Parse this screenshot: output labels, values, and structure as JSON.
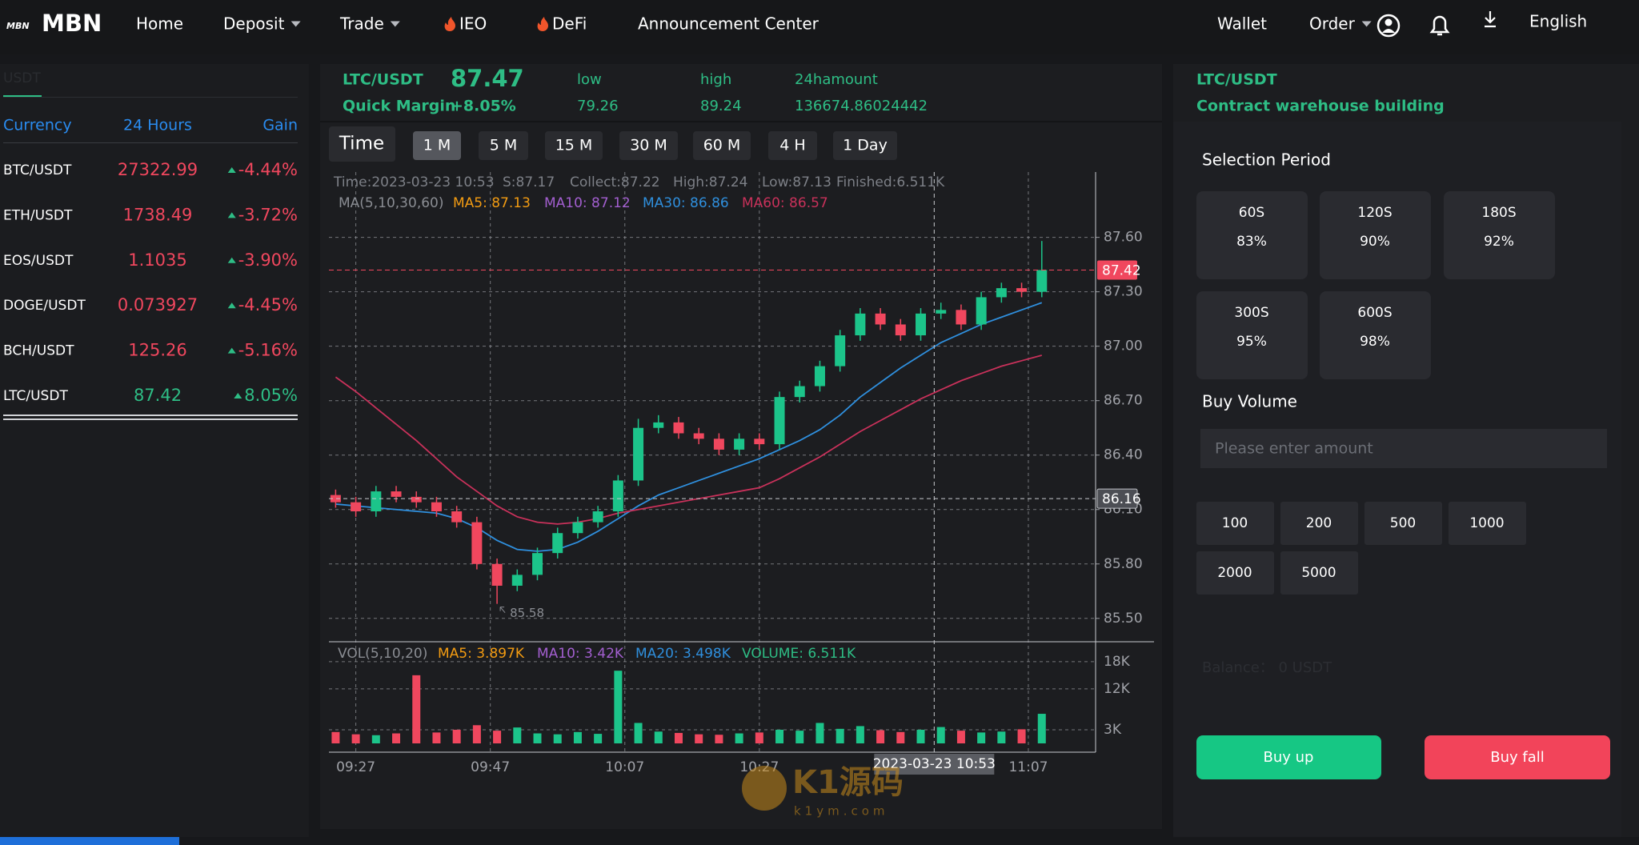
{
  "nav": {
    "logo_small": "MBN",
    "logo": "MBN",
    "items": [
      "Home",
      "Deposit",
      "Trade",
      "IEO",
      "DeFi",
      "Announcement Center"
    ],
    "right": [
      "Wallet",
      "Order",
      "English"
    ]
  },
  "market": {
    "tab": "USDT",
    "headers": [
      "Currency",
      "24 Hours",
      "Gain"
    ],
    "rows": [
      [
        "BTC/USDT",
        "27322.99",
        "-4.44%"
      ],
      [
        "ETH/USDT",
        "1738.49",
        "-3.72%"
      ],
      [
        "EOS/USDT",
        "1.1035",
        "-3.90%"
      ],
      [
        "DOGE/USDT",
        "0.073927",
        "-4.45%"
      ],
      [
        "BCH/USDT",
        "125.26",
        "-5.16%"
      ],
      [
        "LTC/USDT",
        "87.42",
        "8.05%"
      ]
    ]
  },
  "ticker": {
    "pair": "LTC/USDT",
    "price": "87.47",
    "margin_label": "Quick Margin",
    "margin": "+8.05%",
    "stats": [
      {
        "label": "low",
        "value": "79.26"
      },
      {
        "label": "high",
        "value": "89.24"
      },
      {
        "label": "24hamount",
        "value": "136674.86024442"
      }
    ]
  },
  "periods": {
    "label": "Time",
    "options": [
      "1 M",
      "5 M",
      "15 M",
      "30 M",
      "60 M",
      "4 H",
      "1 Day"
    ],
    "active": "1 M"
  },
  "chart_data": {
    "type": "candlestick",
    "info": [
      "Time:2023-03-23 10:53",
      "S:87.17",
      "Collect:87.22",
      "High:87.24",
      "Low:87.13",
      "Finished:6.511K"
    ],
    "ma_legend": [
      {
        "label": "MA(5,10,30,60)",
        "color": "#8a8d93"
      },
      {
        "label": "MA5: 87.13",
        "color": "#f39c12"
      },
      {
        "label": "MA10: 87.12",
        "color": "#a35fd0"
      }
    ],
    "vol_legend": [
      {
        "label": "VOL(5,10,20)",
        "color": "#8a8d93"
      },
      {
        "label": "MA5: 3.897K",
        "color": "#f39c12"
      },
      {
        "label": "MA10: 3.42K",
        "color": "#a35fd0"
      },
      {
        "label": "MA20: 3.498K",
        "color": "#2f8fdd"
      },
      {
        "label": "VOLUME: 6.511K",
        "color": "#2ebd85"
      }
    ],
    "up_color": "#1cc48a",
    "down_color": "#f0475e",
    "x": [
      "09:24",
      "09:27",
      "09:30",
      "09:33",
      "09:36",
      "09:39",
      "09:42",
      "09:45",
      "09:48",
      "09:51",
      "09:54",
      "09:57",
      "10:00",
      "10:03",
      "10:06",
      "10:09",
      "10:12",
      "10:15",
      "10:18",
      "10:21",
      "10:24",
      "10:27",
      "10:30",
      "10:33",
      "10:36",
      "10:39",
      "10:42",
      "10:45",
      "10:48",
      "10:51",
      "10:54",
      "10:57",
      "11:00",
      "11:03",
      "11:06",
      "11:09"
    ],
    "open": [
      86.18,
      86.14,
      86.09,
      86.2,
      86.17,
      86.14,
      86.09,
      86.03,
      85.8,
      85.68,
      85.74,
      85.86,
      85.97,
      86.03,
      86.09,
      86.26,
      86.55,
      86.58,
      86.52,
      86.49,
      86.43,
      86.49,
      86.46,
      86.72,
      86.78,
      86.89,
      87.06,
      87.18,
      87.12,
      87.06,
      87.18,
      87.2,
      87.12,
      87.27,
      87.32,
      87.3
    ],
    "high": [
      86.21,
      86.17,
      86.23,
      86.23,
      86.2,
      86.17,
      86.12,
      86.06,
      85.83,
      85.77,
      85.89,
      86.0,
      86.06,
      86.12,
      86.29,
      86.6,
      86.62,
      86.61,
      86.55,
      86.52,
      86.52,
      86.52,
      86.75,
      86.81,
      86.92,
      87.09,
      87.21,
      87.21,
      87.15,
      87.21,
      87.24,
      87.23,
      87.3,
      87.35,
      87.35,
      87.58
    ],
    "low": [
      86.11,
      86.06,
      86.06,
      86.14,
      86.11,
      86.06,
      86.0,
      85.77,
      85.58,
      85.65,
      85.71,
      85.83,
      85.94,
      86.0,
      86.06,
      86.23,
      86.52,
      86.49,
      86.46,
      86.4,
      86.4,
      86.43,
      86.43,
      86.69,
      86.75,
      86.86,
      87.03,
      87.09,
      87.03,
      87.03,
      87.15,
      87.09,
      87.09,
      87.24,
      87.27,
      87.27
    ],
    "close": [
      86.14,
      86.09,
      86.2,
      86.17,
      86.14,
      86.09,
      86.03,
      85.8,
      85.68,
      85.74,
      85.86,
      85.97,
      86.03,
      86.09,
      86.26,
      86.55,
      86.58,
      86.52,
      86.49,
      86.43,
      86.49,
      86.46,
      86.72,
      86.78,
      86.89,
      87.06,
      87.18,
      87.12,
      87.06,
      87.18,
      87.2,
      87.12,
      87.27,
      87.32,
      87.3,
      87.42
    ],
    "volume": [
      2500,
      2000,
      1800,
      2200,
      15000,
      2400,
      3000,
      4000,
      2800,
      3500,
      2200,
      2000,
      2500,
      2100,
      16000,
      4500,
      2600,
      2300,
      2000,
      1900,
      2200,
      2400,
      3000,
      2800,
      4500,
      3200,
      3800,
      2900,
      2500,
      3000,
      3600,
      2800,
      2400,
      2600,
      3100,
      6511
    ],
    "ma_series": [
      {
        "label": "MA30: 86.86",
        "color": "#2f8fdd",
        "values": [
          86.13,
          86.12,
          86.11,
          86.1,
          86.09,
          86.08,
          86.05,
          86.0,
          85.93,
          85.88,
          85.87,
          85.88,
          85.92,
          85.98,
          86.05,
          86.12,
          86.18,
          86.22,
          86.26,
          86.3,
          86.34,
          86.38,
          86.43,
          86.48,
          86.54,
          86.62,
          86.72,
          86.8,
          86.88,
          86.95,
          87.02,
          87.07,
          87.12,
          87.16,
          87.2,
          87.24
        ]
      },
      {
        "label": "MA60: 86.57",
        "color": "#c8315a",
        "values": [
          86.83,
          86.75,
          86.66,
          86.57,
          86.48,
          86.38,
          86.28,
          86.2,
          86.12,
          86.06,
          86.03,
          86.02,
          86.03,
          86.05,
          86.08,
          86.1,
          86.12,
          86.14,
          86.16,
          86.18,
          86.2,
          86.22,
          86.27,
          86.33,
          86.39,
          86.46,
          86.53,
          86.59,
          86.65,
          86.71,
          86.76,
          86.81,
          86.85,
          86.89,
          86.92,
          86.95
        ]
      }
    ],
    "xlim": [
      "09:23",
      "11:17"
    ],
    "xticks": [
      "09:27",
      "09:47",
      "10:07",
      "10:27",
      "11:07"
    ],
    "ylim": [
      85.38,
      87.96
    ],
    "yticks": [
      {
        "value": 85.5,
        "label": "85.50"
      },
      {
        "value": 85.8,
        "label": "85.80"
      },
      {
        "value": 86.1,
        "label": "86.10"
      },
      {
        "value": 86.4,
        "label": "86.40"
      },
      {
        "value": 86.7,
        "label": "86.70"
      },
      {
        "value": 87.0,
        "label": "87.00"
      },
      {
        "value": 87.3,
        "label": "87.30"
      },
      {
        "value": 87.6,
        "label": "87.60"
      }
    ],
    "vol_ylim": [
      0,
      22200
    ],
    "vol_yticks": [
      {
        "value": 3000,
        "label": "3K"
      },
      {
        "value": 12000,
        "label": "12K"
      },
      {
        "value": 18000,
        "label": "18K"
      }
    ],
    "grid": true,
    "last_price": {
      "value": 87.42,
      "label": "87.42"
    },
    "crosshair": {
      "value": 86.16,
      "label": "86.16",
      "x": "10:53",
      "x_label": "2023-03-23 10:53"
    },
    "low_marker": {
      "value": 85.58,
      "label": "85.58",
      "x": "09:48"
    }
  },
  "order": {
    "pair": "LTC/USDT",
    "subtitle": "Contract warehouse building",
    "period_label": "Selection Period",
    "periods": [
      {
        "time": "60S",
        "rate": "83%"
      },
      {
        "time": "120S",
        "rate": "90%"
      },
      {
        "time": "180S",
        "rate": "92%"
      },
      {
        "time": "300S",
        "rate": "95%"
      },
      {
        "time": "600S",
        "rate": "98%"
      }
    ],
    "volume_label": "Buy Volume",
    "placeholder": "Please enter amount",
    "amounts": [
      "100",
      "200",
      "500",
      "1000",
      "2000",
      "5000"
    ],
    "balance": "Balance： 0 USDT",
    "buy_up": "Buy up",
    "buy_fall": "Buy fall"
  },
  "watermark": [
    "K1源码",
    "k1ym.com"
  ]
}
